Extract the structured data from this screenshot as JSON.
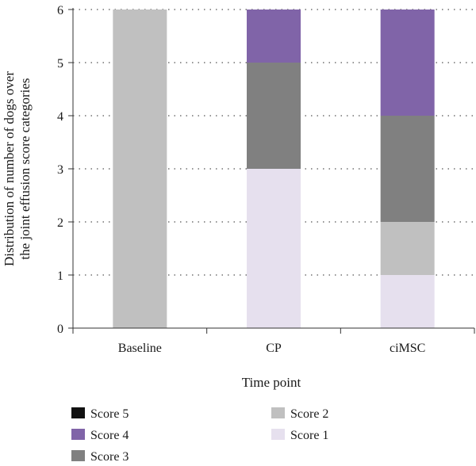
{
  "chart_data": {
    "type": "bar",
    "stacked": true,
    "categories": [
      "Baseline",
      "CP",
      "ciMSC"
    ],
    "xlabel": "Time point",
    "ylabel_lines": [
      "Distribution of number of dogs over",
      "the joint effusion score categories"
    ],
    "ylim": [
      0,
      6
    ],
    "yticks": [
      "0",
      "1",
      "2",
      "3",
      "4",
      "5",
      "6"
    ],
    "grid": "horizontal-dotted",
    "legend_position": "bottom",
    "series": [
      {
        "name": "Score 5",
        "color": "#111111",
        "values": [
          0,
          0,
          0
        ]
      },
      {
        "name": "Score 4",
        "color": "#8064a8",
        "values": [
          0,
          1,
          2
        ]
      },
      {
        "name": "Score 3",
        "color": "#808080",
        "values": [
          0,
          2,
          2
        ]
      },
      {
        "name": "Score 2",
        "color": "#c0c0c0",
        "values": [
          6,
          0,
          1
        ]
      },
      {
        "name": "Score 1",
        "color": "#e6e0ee",
        "values": [
          0,
          3,
          1
        ]
      }
    ],
    "stack_order_bottom_to_top": [
      "Score 1",
      "Score 2",
      "Score 3",
      "Score 4",
      "Score 5"
    ]
  }
}
